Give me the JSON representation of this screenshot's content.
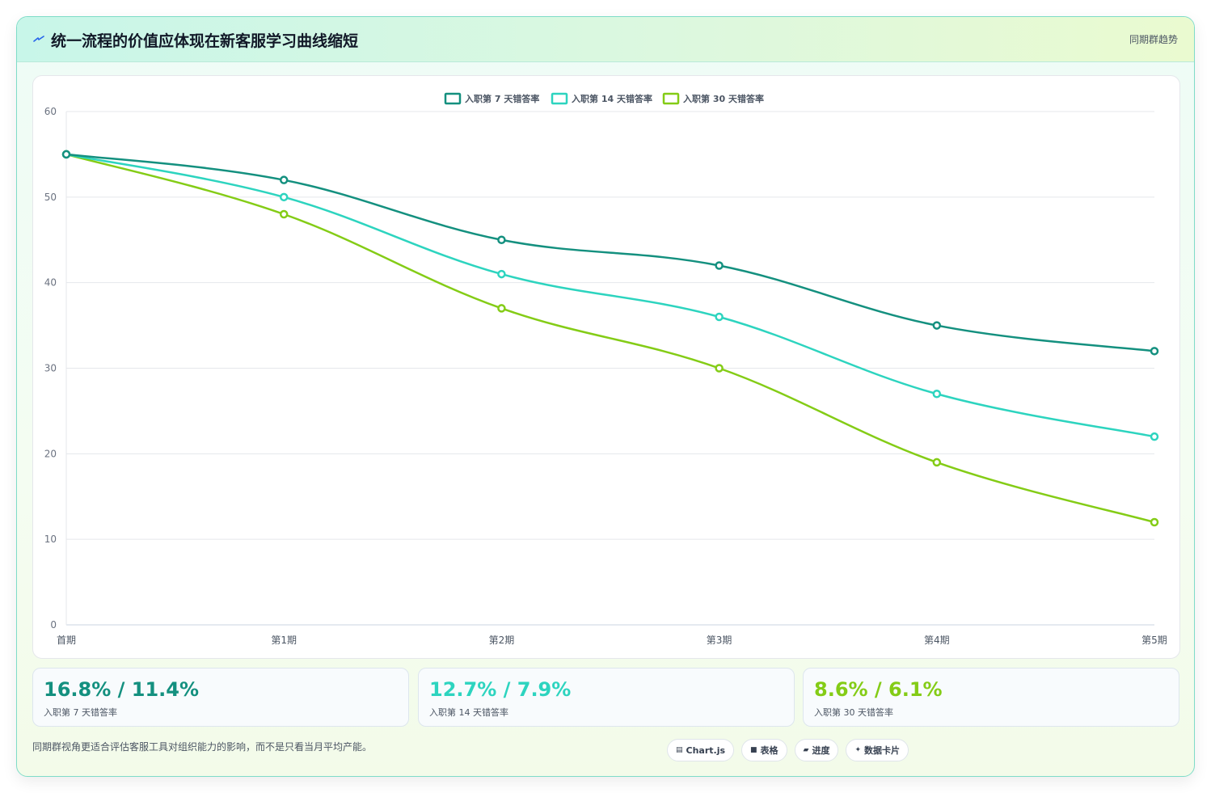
{
  "header": {
    "title": "统一流程的价值应体现在新客服学习曲线缩短",
    "tag": "同期群趋势",
    "icon": "lightning-icon"
  },
  "chart_data": {
    "type": "line",
    "categories": [
      "首期",
      "第1期",
      "第2期",
      "第3期",
      "第4期",
      "第5期"
    ],
    "ylim": [
      0,
      60
    ],
    "yticks": [
      0,
      10,
      20,
      30,
      40,
      50,
      60
    ],
    "grid": true,
    "legend_position": "top-center",
    "series": [
      {
        "name": "入职第 7 天错答率",
        "color": "#14907f",
        "values": [
          55,
          52,
          45,
          42,
          35,
          32
        ]
      },
      {
        "name": "入职第 14 天错答率",
        "color": "#2dd4bf",
        "values": [
          55,
          50,
          41,
          36,
          27,
          22
        ]
      },
      {
        "name": "入职第 30 天错答率",
        "color": "#84cc16",
        "values": [
          55,
          48,
          37,
          30,
          19,
          12
        ]
      }
    ]
  },
  "stats": [
    {
      "value": "16.8% / 11.4%",
      "label": "入职第 7 天错答率",
      "color": "#14907f"
    },
    {
      "value": "12.7% / 7.9%",
      "label": "入职第 14 天错答率",
      "color": "#2dd4bf"
    },
    {
      "value": "8.6% / 6.1%",
      "label": "入职第 30 天错答率",
      "color": "#84cc16"
    }
  ],
  "footer": {
    "note": "同期群视角更适合评估客服工具对组织能力的影响，而不是只看当月平均产能。",
    "pills": [
      {
        "icon": "chart-icon",
        "label": "Chart.js"
      },
      {
        "icon": "table-icon",
        "label": "表格"
      },
      {
        "icon": "progress-icon",
        "label": "进度"
      },
      {
        "icon": "sparkle-icon",
        "label": "数据卡片"
      }
    ]
  }
}
